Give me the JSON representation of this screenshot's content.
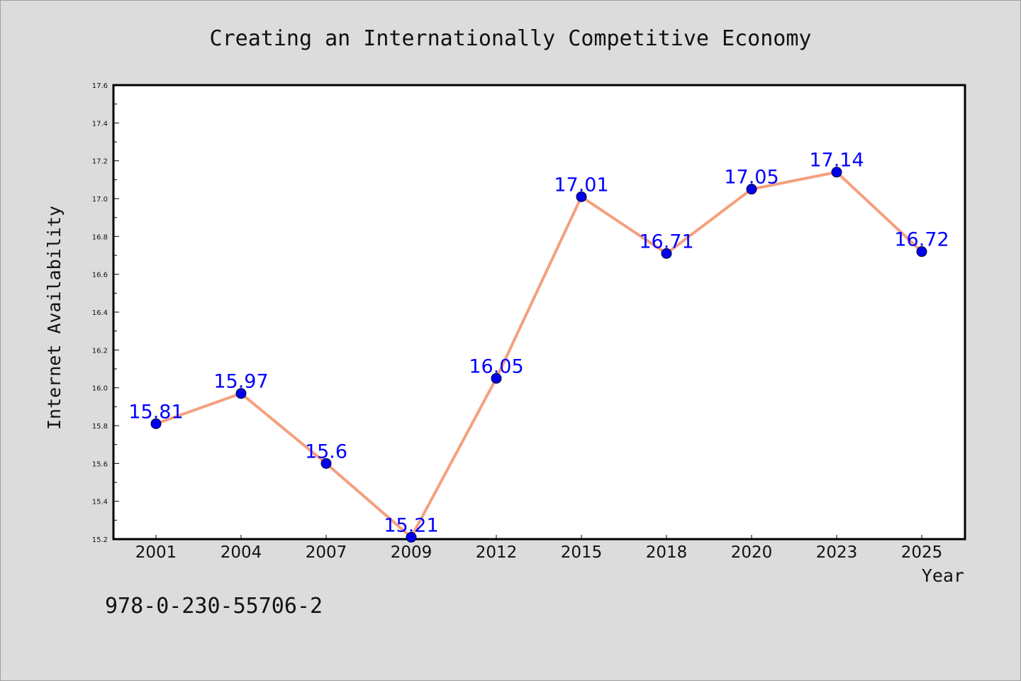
{
  "chart_data": {
    "type": "line",
    "title": "Creating an Internationally Competitive Economy",
    "xlabel": "Year",
    "ylabel": "Internet Availability",
    "categories": [
      "2001",
      "2004",
      "2007",
      "2009",
      "2012",
      "2015",
      "2018",
      "2020",
      "2023",
      "2025"
    ],
    "series": [
      {
        "values": [
          15.81,
          15.97,
          15.6,
          15.21,
          16.05,
          17.01,
          16.71,
          17.05,
          17.14,
          16.72
        ]
      }
    ],
    "data_labels": [
      "15.81",
      "15.97",
      "15.6",
      "15.21",
      "16.05",
      "17.01",
      "16.71",
      "17.05",
      "17.14",
      "16.72"
    ],
    "ylim": [
      15.2,
      17.6
    ],
    "yticks": [
      "15.2",
      "15.4",
      "15.6",
      "15.8",
      "16.0",
      "16.2",
      "16.4",
      "16.6",
      "16.8",
      "17.0",
      "17.2",
      "17.4",
      "17.6"
    ],
    "grid": false,
    "legend": "none",
    "colors": {
      "line": "#f4a07e",
      "marker": "#0000ee",
      "label": "#0000ff",
      "plot_bg": "#ffffff",
      "page_bg": "#dcdcdc"
    }
  },
  "footer_text": "978-0-230-55706-2"
}
